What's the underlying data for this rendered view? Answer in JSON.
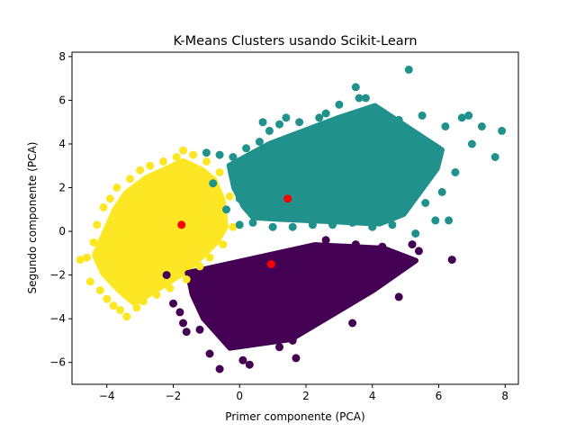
{
  "chart_data": {
    "type": "scatter",
    "title": "K-Means Clusters usando Scikit-Learn",
    "xlabel": "Primer componente (PCA)",
    "ylabel": "Segundo componente (PCA)",
    "xlim": [
      -5.05,
      8.4
    ],
    "ylim": [
      -7.0,
      8.2
    ],
    "xticks": [
      -4,
      -2,
      0,
      2,
      4,
      6,
      8
    ],
    "xtick_labels": [
      "−4",
      "−2",
      "0",
      "2",
      "4",
      "6",
      "8"
    ],
    "yticks": [
      -6,
      -4,
      -2,
      0,
      2,
      4,
      6,
      8
    ],
    "ytick_labels": [
      "−6",
      "−4",
      "−2",
      "0",
      "2",
      "4",
      "6",
      "8"
    ],
    "grid": false,
    "clusters": [
      {
        "color": "#fde725",
        "center": [
          -1.75,
          0.3
        ],
        "points": [
          [
            -4.8,
            -1.3
          ],
          [
            -4.6,
            -1.2
          ],
          [
            -4.5,
            -2.3
          ],
          [
            -4.4,
            -0.5
          ],
          [
            -4.3,
            0.3
          ],
          [
            -4.2,
            -2.7
          ],
          [
            -4.1,
            1.1
          ],
          [
            -4.0,
            -3.1
          ],
          [
            -3.9,
            1.5
          ],
          [
            -3.8,
            -3.4
          ],
          [
            -3.7,
            2.0
          ],
          [
            -3.6,
            -3.6
          ],
          [
            -3.4,
            -3.9
          ],
          [
            -3.3,
            2.4
          ],
          [
            -3.1,
            -3.5
          ],
          [
            -3.0,
            2.8
          ],
          [
            -2.9,
            -3.2
          ],
          [
            -2.7,
            3.0
          ],
          [
            -2.5,
            -2.9
          ],
          [
            -2.3,
            3.2
          ],
          [
            -2.1,
            -2.6
          ],
          [
            -1.9,
            3.4
          ],
          [
            -1.7,
            3.7
          ],
          [
            -1.6,
            -2.2
          ],
          [
            -1.4,
            3.5
          ],
          [
            -1.2,
            -1.6
          ],
          [
            -1.0,
            3.2
          ],
          [
            -0.9,
            -1.2
          ],
          [
            -0.6,
            2.7
          ],
          [
            -0.5,
            -0.6
          ],
          [
            -0.3,
            1.6
          ],
          [
            -0.2,
            0.2
          ],
          [
            -3.9,
            -1.0
          ],
          [
            -3.5,
            0.0
          ],
          [
            -3.2,
            -1.8
          ],
          [
            -2.8,
            1.2
          ],
          [
            -2.4,
            -0.8
          ],
          [
            -2.0,
            1.8
          ],
          [
            -1.5,
            -0.2
          ],
          [
            -1.1,
            1.1
          ],
          [
            -0.8,
            0.4
          ],
          [
            -2.6,
            -2.0
          ],
          [
            -3.0,
            0.6
          ],
          [
            -2.2,
            0.4
          ],
          [
            -1.8,
            -1.4
          ],
          [
            -1.3,
            2.3
          ]
        ]
      },
      {
        "color": "#21918c",
        "center": [
          1.45,
          1.5
        ],
        "points": [
          [
            -1.0,
            3.6
          ],
          [
            -0.8,
            2.2
          ],
          [
            -0.6,
            3.5
          ],
          [
            -0.4,
            1.0
          ],
          [
            -0.2,
            3.4
          ],
          [
            0.0,
            0.3
          ],
          [
            0.2,
            3.8
          ],
          [
            0.4,
            0.4
          ],
          [
            0.6,
            4.1
          ],
          [
            0.7,
            5.0
          ],
          [
            0.9,
            4.6
          ],
          [
            1.0,
            0.2
          ],
          [
            1.2,
            4.9
          ],
          [
            1.4,
            5.2
          ],
          [
            1.6,
            0.2
          ],
          [
            1.8,
            5.0
          ],
          [
            2.0,
            4.5
          ],
          [
            2.2,
            0.3
          ],
          [
            2.4,
            5.2
          ],
          [
            2.6,
            5.4
          ],
          [
            2.8,
            0.3
          ],
          [
            3.0,
            5.8
          ],
          [
            3.2,
            4.8
          ],
          [
            3.4,
            0.4
          ],
          [
            3.5,
            6.6
          ],
          [
            3.6,
            6.1
          ],
          [
            3.8,
            6.1
          ],
          [
            4.0,
            0.2
          ],
          [
            4.2,
            5.4
          ],
          [
            4.4,
            3.9
          ],
          [
            4.6,
            0.3
          ],
          [
            4.8,
            5.1
          ],
          [
            5.0,
            4.3
          ],
          [
            5.1,
            7.4
          ],
          [
            5.3,
            -0.1
          ],
          [
            5.5,
            5.3
          ],
          [
            5.7,
            4.0
          ],
          [
            5.9,
            0.5
          ],
          [
            6.0,
            3.4
          ],
          [
            6.1,
            1.8
          ],
          [
            6.2,
            4.8
          ],
          [
            6.3,
            0.5
          ],
          [
            6.5,
            2.7
          ],
          [
            6.7,
            5.2
          ],
          [
            6.9,
            5.3
          ],
          [
            7.0,
            4.0
          ],
          [
            7.3,
            4.8
          ],
          [
            7.7,
            3.4
          ],
          [
            7.9,
            4.6
          ],
          [
            1.0,
            2.5
          ],
          [
            1.8,
            1.2
          ],
          [
            2.5,
            2.8
          ],
          [
            3.1,
            1.5
          ],
          [
            3.8,
            2.4
          ],
          [
            4.5,
            1.1
          ],
          [
            5.2,
            2.2
          ],
          [
            5.6,
            1.3
          ],
          [
            2.2,
            3.6
          ],
          [
            0.4,
            2.0
          ],
          [
            1.5,
            3.5
          ],
          [
            3.3,
            3.3
          ],
          [
            4.1,
            3.0
          ],
          [
            0.0,
            1.5
          ],
          [
            2.9,
            0.9
          ]
        ]
      },
      {
        "color": "#440154",
        "center": [
          0.95,
          -1.5
        ],
        "points": [
          [
            -2.2,
            -2.0
          ],
          [
            -2.0,
            -3.3
          ],
          [
            -1.8,
            -3.7
          ],
          [
            -1.6,
            -4.6
          ],
          [
            -1.4,
            -2.8
          ],
          [
            -1.2,
            -4.5
          ],
          [
            -1.0,
            -3.8
          ],
          [
            -0.9,
            -5.6
          ],
          [
            -0.8,
            -3.2
          ],
          [
            -0.6,
            -4.1
          ],
          [
            -0.4,
            -4.4
          ],
          [
            -0.2,
            -4.8
          ],
          [
            -0.6,
            -6.3
          ],
          [
            0.0,
            -4.2
          ],
          [
            0.2,
            -4.9
          ],
          [
            0.1,
            -5.9
          ],
          [
            0.3,
            -6.1
          ],
          [
            0.5,
            -4.6
          ],
          [
            0.7,
            -5.0
          ],
          [
            0.9,
            -4.8
          ],
          [
            1.0,
            -4.2
          ],
          [
            1.2,
            -5.3
          ],
          [
            1.4,
            -4.6
          ],
          [
            1.6,
            -5.0
          ],
          [
            1.7,
            -5.8
          ],
          [
            1.9,
            -4.4
          ],
          [
            2.1,
            -3.8
          ],
          [
            2.3,
            -4.1
          ],
          [
            2.5,
            -3.5
          ],
          [
            2.7,
            -3.2
          ],
          [
            3.0,
            -2.9
          ],
          [
            3.2,
            -3.0
          ],
          [
            3.4,
            -4.2
          ],
          [
            3.6,
            -2.7
          ],
          [
            3.8,
            -2.4
          ],
          [
            4.0,
            -2.2
          ],
          [
            4.2,
            -2.0
          ],
          [
            4.4,
            -1.5
          ],
          [
            4.6,
            -1.4
          ],
          [
            4.8,
            -3.0
          ],
          [
            4.9,
            -1.2
          ],
          [
            5.2,
            -0.6
          ],
          [
            5.4,
            -0.9
          ],
          [
            6.4,
            -1.3
          ],
          [
            4.3,
            -0.7
          ],
          [
            -1.7,
            -4.2
          ],
          [
            0.5,
            -2.5
          ],
          [
            1.5,
            -2.5
          ],
          [
            2.5,
            -2.0
          ],
          [
            3.2,
            -1.5
          ],
          [
            0.0,
            -3.0
          ],
          [
            1.0,
            -3.5
          ],
          [
            2.0,
            -3.0
          ],
          [
            -0.5,
            -2.0
          ],
          [
            3.5,
            -0.6
          ],
          [
            2.6,
            -0.4
          ]
        ]
      }
    ]
  }
}
